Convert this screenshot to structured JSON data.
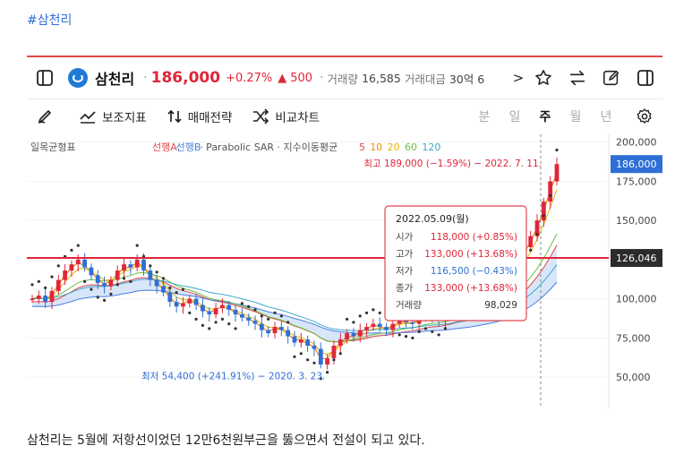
{
  "hashtag": "#삼천리",
  "header": {
    "stock_name": "삼천리",
    "price": "186,000",
    "change_pct": "+0.27%",
    "change_amt": "500",
    "volume_label": "거래량",
    "volume": "16,585",
    "amount_label": "거래대금",
    "amount": "30억 6",
    "overflow_arrow": ">"
  },
  "toolbar": {
    "indicators": "보조지표",
    "strategy": "매매전략",
    "compare": "비교차트",
    "periods": [
      "분",
      "일",
      "주",
      "월",
      "년"
    ],
    "active_period": "주"
  },
  "chart_data": {
    "type": "candlestick",
    "indicator_title": "일목균형표",
    "legend_prefix": [
      {
        "text": "선행A",
        "color": "#e0484c"
      },
      {
        "text": "선행B",
        "color": "#4a7ee0"
      }
    ],
    "legend_middle": "Parabolic SAR · 지수이동평균",
    "ma_periods": [
      {
        "text": "5",
        "color": "#e0484c"
      },
      {
        "text": "10",
        "color": "#f08c00"
      },
      {
        "text": "20",
        "color": "#e6b800"
      },
      {
        "text": "60",
        "color": "#6cbf3f"
      },
      {
        "text": "120",
        "color": "#3fa7c9"
      }
    ],
    "y_ticks": [
      "200,000",
      "175,000",
      "150,000",
      "125,000",
      "100,000",
      "75,000",
      "50,000"
    ],
    "y_tick_values": [
      200000,
      175000,
      150000,
      125000,
      100000,
      75000,
      50000
    ],
    "ylim": [
      30000,
      205000
    ],
    "current_price_tag": "186,000",
    "current_price": 186000,
    "hline_tag": "126,046",
    "hline_value": 126046,
    "high_annotation": "최고 189,000 (−1.59%) − 2022. 7. 11.",
    "low_annotation": "최저 54,400 (+241.91%) − 2020. 3. 23.",
    "tooltip": {
      "date": "2022.05.09(월)",
      "rows": [
        {
          "label": "시가",
          "value": "118,000 (+0.85%)",
          "color": "#e0263a"
        },
        {
          "label": "고가",
          "value": "133,000 (+13.68%)",
          "color": "#e0263a"
        },
        {
          "label": "저가",
          "value": "116,500 (−0.43%)",
          "color": "#2f6fd6"
        },
        {
          "label": "종가",
          "value": "133,000 (+13.68%)",
          "color": "#e0263a"
        },
        {
          "label": "거래량",
          "value": "98,029",
          "color": "#333333"
        }
      ]
    },
    "weekly_close": [
      100000,
      102000,
      98000,
      105000,
      112000,
      118000,
      122000,
      125000,
      120000,
      115000,
      110000,
      108000,
      112000,
      118000,
      122000,
      120000,
      125000,
      118000,
      112000,
      108000,
      104000,
      98000,
      95000,
      97000,
      100000,
      96000,
      92000,
      90000,
      94000,
      96000,
      93000,
      90000,
      88000,
      86000,
      84000,
      80000,
      78000,
      82000,
      80000,
      76000,
      72000,
      74000,
      70000,
      68000,
      58000,
      62000,
      70000,
      74000,
      78000,
      76000,
      80000,
      82000,
      84000,
      82000,
      80000,
      84000,
      86000,
      85000,
      84000,
      88000,
      90000,
      88000,
      86000,
      90000,
      92000,
      94000,
      92000,
      95000,
      98000,
      100000,
      102000,
      105000,
      110000,
      118000,
      125000,
      133000,
      140000,
      150000,
      162000,
      175000,
      186000
    ]
  },
  "caption": "삼천리는 5월에 저항선이었던 12만6천원부근을 뚫으면서 전설이 되고 있다."
}
